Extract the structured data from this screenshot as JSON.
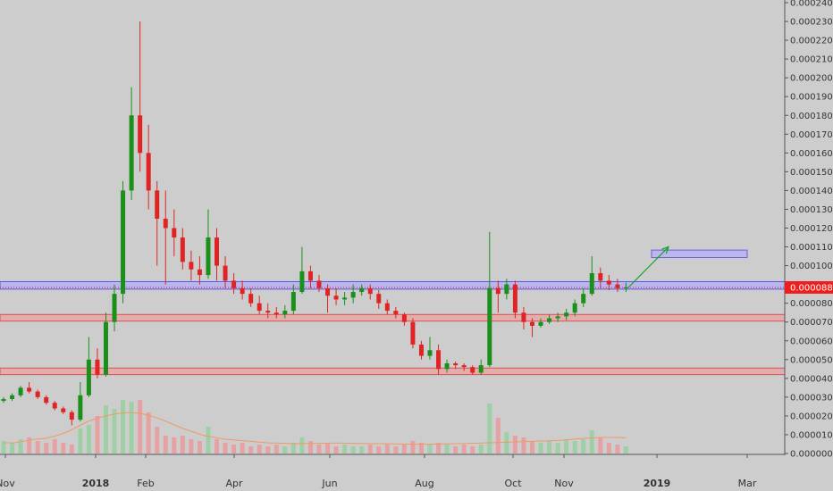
{
  "chart_data": {
    "type": "candlestick",
    "title": "",
    "xlabel": "",
    "ylabel": "",
    "ylim": [
      0,
      0.00024
    ],
    "grid": false,
    "legend": "none",
    "colors": {
      "up": "#1a8f1a",
      "down": "#e02424",
      "background": "#cdcdcd",
      "price_tag": "#f01d1d",
      "volume_up": "#9fcfa5",
      "volume_down": "#e6a2a2",
      "volume_ma": "#ef9a66",
      "support_zone": "#ee9999",
      "resistance_zone": "#aaa7ff",
      "target_box": "#b7b2f0",
      "arrow": "#12a52a"
    },
    "y_ticks": [
      "0.000240000",
      "0.000230000",
      "0.000220000",
      "0.000210000",
      "0.000200000",
      "0.000190000",
      "0.000180000",
      "0.000170000",
      "0.000160000",
      "0.000150000",
      "0.000140000",
      "0.000130000",
      "0.000120000",
      "0.000110000",
      "0.000100000",
      "0.000090000",
      "0.000080000",
      "0.000070000",
      "0.000060000",
      "0.000050000",
      "0.000040000",
      "0.000030000",
      "0.000020000",
      "0.000010000",
      "0.000000000"
    ],
    "x_ticks": [
      {
        "label": "Nov",
        "bold": false
      },
      {
        "label": "2018",
        "bold": true
      },
      {
        "label": "Feb",
        "bold": false
      },
      {
        "label": "Apr",
        "bold": false
      },
      {
        "label": "Jun",
        "bold": false
      },
      {
        "label": "Aug",
        "bold": false
      },
      {
        "label": "Oct",
        "bold": false
      },
      {
        "label": "Nov",
        "bold": false
      },
      {
        "label": "2019",
        "bold": true
      },
      {
        "label": "Mar",
        "bold": false
      }
    ],
    "last_price": "0.000088400",
    "zones": [
      {
        "kind": "resistance",
        "low": 8.75e-05,
        "high": 9.15e-05
      },
      {
        "kind": "support",
        "low": 7.05e-05,
        "high": 7.4e-05
      },
      {
        "kind": "support",
        "low": 4.2e-05,
        "high": 4.55e-05
      }
    ],
    "target_box": {
      "low": 0.0001043,
      "high": 0.0001083
    },
    "series": [
      {
        "name": "",
        "points": [
          [
            2.8e-05,
            2.9e-05,
            3e-05,
            2.7e-05
          ],
          [
            2.9e-05,
            3.1e-05,
            3.2e-05,
            2.8e-05
          ],
          [
            3.1e-05,
            3.5e-05,
            3.6e-05,
            3e-05
          ],
          [
            3.5e-05,
            3.3e-05,
            3.8e-05,
            3.2e-05
          ],
          [
            3.3e-05,
            3e-05,
            3.4e-05,
            2.9e-05
          ],
          [
            3e-05,
            2.7e-05,
            3.1e-05,
            2.6e-05
          ],
          [
            2.7e-05,
            2.4e-05,
            2.8e-05,
            2.3e-05
          ],
          [
            2.4e-05,
            2.2e-05,
            2.5e-05,
            2.1e-05
          ],
          [
            2.2e-05,
            1.8e-05,
            2.3e-05,
            1.5e-05
          ],
          [
            1.8e-05,
            3.1e-05,
            3.8e-05,
            1.7e-05
          ],
          [
            3.1e-05,
            5e-05,
            6.2e-05,
            3e-05
          ],
          [
            5e-05,
            4.2e-05,
            5.6e-05,
            4e-05
          ],
          [
            4.2e-05,
            7e-05,
            7.5e-05,
            4.1e-05
          ],
          [
            7e-05,
            8.5e-05,
            9e-05,
            6.5e-05
          ],
          [
            8.5e-05,
            0.00014,
            0.000145,
            8e-05
          ],
          [
            0.00014,
            0.00018,
            0.000195,
            0.000135
          ],
          [
            0.00018,
            0.00016,
            0.00023,
            0.00015
          ],
          [
            0.00016,
            0.00014,
            0.000175,
            0.00013
          ],
          [
            0.00014,
            0.000125,
            0.000145,
            0.0001
          ],
          [
            0.000125,
            0.00012,
            0.00014,
            9e-05
          ],
          [
            0.00012,
            0.000115,
            0.00013,
            0.000105
          ],
          [
            0.000115,
            0.000102,
            0.00012,
            9.8e-05
          ],
          [
            0.000102,
            9.8e-05,
            0.000108,
            9.2e-05
          ],
          [
            9.8e-05,
            9.5e-05,
            0.000105,
            9e-05
          ],
          [
            9.5e-05,
            0.000115,
            0.00013,
            9.3e-05
          ],
          [
            0.000115,
            0.0001,
            0.00012,
            9.2e-05
          ],
          [
            0.0001,
            9.2e-05,
            0.000105,
            8.8e-05
          ],
          [
            9.2e-05,
            8.8e-05,
            9.6e-05,
            8.5e-05
          ],
          [
            8.8e-05,
            8.5e-05,
            9.2e-05,
            8.2e-05
          ],
          [
            8.5e-05,
            8e-05,
            8.8e-05,
            7.8e-05
          ],
          [
            8e-05,
            7.6e-05,
            8.4e-05,
            7.4e-05
          ],
          [
            7.6e-05,
            7.5e-05,
            8e-05,
            7.2e-05
          ],
          [
            7.5e-05,
            7.4e-05,
            7.8e-05,
            7.2e-05
          ],
          [
            7.4e-05,
            7.6e-05,
            7.9e-05,
            7.2e-05
          ],
          [
            7.6e-05,
            8.6e-05,
            9e-05,
            7.4e-05
          ],
          [
            8.6e-05,
            9.7e-05,
            0.00011,
            8.5e-05
          ],
          [
            9.7e-05,
            9.2e-05,
            0.0001,
            8.8e-05
          ],
          [
            9.2e-05,
            8.8e-05,
            9.5e-05,
            8.6e-05
          ],
          [
            8.8e-05,
            8.4e-05,
            9e-05,
            7.5e-05
          ],
          [
            8.4e-05,
            8.2e-05,
            8.8e-05,
            7.9e-05
          ],
          [
            8.2e-05,
            8.3e-05,
            8.6e-05,
            7.9e-05
          ],
          [
            8.3e-05,
            8.6e-05,
            9e-05,
            8e-05
          ],
          [
            8.6e-05,
            8.8e-05,
            9e-05,
            8.4e-05
          ],
          [
            8.8e-05,
            8.5e-05,
            9e-05,
            8.2e-05
          ],
          [
            8.5e-05,
            8e-05,
            8.7e-05,
            7.7e-05
          ],
          [
            8e-05,
            7.6e-05,
            8.2e-05,
            7.4e-05
          ],
          [
            7.6e-05,
            7.4e-05,
            7.8e-05,
            7.2e-05
          ],
          [
            7.4e-05,
            7e-05,
            7.5e-05,
            6.8e-05
          ],
          [
            7e-05,
            5.8e-05,
            7.2e-05,
            5.6e-05
          ],
          [
            5.8e-05,
            5.2e-05,
            6e-05,
            5e-05
          ],
          [
            5.2e-05,
            5.5e-05,
            6.2e-05,
            5e-05
          ],
          [
            5.5e-05,
            4.5e-05,
            5.8e-05,
            4.2e-05
          ],
          [
            4.5e-05,
            4.8e-05,
            5e-05,
            4.3e-05
          ],
          [
            4.8e-05,
            4.7e-05,
            4.9e-05,
            4.5e-05
          ],
          [
            4.7e-05,
            4.6e-05,
            4.8e-05,
            4.4e-05
          ],
          [
            4.6e-05,
            4.3e-05,
            4.7e-05,
            4.2e-05
          ],
          [
            4.3e-05,
            4.7e-05,
            5e-05,
            4.2e-05
          ],
          [
            4.7e-05,
            8.8e-05,
            0.000118,
            4.6e-05
          ],
          [
            8.8e-05,
            8.5e-05,
            9.2e-05,
            7.5e-05
          ],
          [
            8.5e-05,
            9e-05,
            9.3e-05,
            8.2e-05
          ],
          [
            9e-05,
            7.5e-05,
            9.2e-05,
            7.2e-05
          ],
          [
            7.5e-05,
            7e-05,
            7.8e-05,
            6.6e-05
          ],
          [
            7e-05,
            6.8e-05,
            7.2e-05,
            6.2e-05
          ],
          [
            6.8e-05,
            7e-05,
            7.2e-05,
            6.7e-05
          ],
          [
            7e-05,
            7.2e-05,
            7.4e-05,
            6.9e-05
          ],
          [
            7.2e-05,
            7.3e-05,
            7.5e-05,
            7e-05
          ],
          [
            7.3e-05,
            7.5e-05,
            7.7e-05,
            7.1e-05
          ],
          [
            7.5e-05,
            8e-05,
            8.2e-05,
            7.3e-05
          ],
          [
            8e-05,
            8.5e-05,
            8.8e-05,
            7.8e-05
          ],
          [
            8.5e-05,
            9.6e-05,
            0.000105,
            8.4e-05
          ],
          [
            9.6e-05,
            9.2e-05,
            9.9e-05,
            8.8e-05
          ],
          [
            9.2e-05,
            9e-05,
            9.5e-05,
            8.7e-05
          ],
          [
            9e-05,
            8.8e-05,
            9.3e-05,
            8.6e-05
          ],
          [
            8.8e-05,
            8.84e-05,
            9.1e-05,
            8.6e-05
          ]
        ]
      },
      {
        "name": "",
        "points": [
          7e-06,
          6e-06,
          8e-06,
          9e-06,
          7e-06,
          6e-06,
          8e-06,
          6e-06,
          5e-06,
          1.4e-05,
          1.6e-05,
          2.1e-05,
          2.7e-05,
          2.5e-05,
          3e-05,
          2.9e-05,
          3e-05,
          2.3e-05,
          1.5e-05,
          1e-05,
          9e-06,
          1e-05,
          8e-06,
          7e-06,
          1.5e-05,
          8e-06,
          6e-06,
          5e-06,
          6e-06,
          4e-06,
          5e-06,
          4e-06,
          5e-06,
          4e-06,
          6e-06,
          9e-06,
          7e-06,
          5e-06,
          6e-06,
          4e-06,
          5e-06,
          4e-06,
          4e-06,
          5e-06,
          4e-06,
          5e-06,
          4e-06,
          5e-06,
          7e-06,
          6e-06,
          5e-06,
          6e-06,
          5e-06,
          4e-06,
          5e-06,
          4e-06,
          5e-06,
          2.8e-05,
          2e-05,
          1.2e-05,
          1e-05,
          9e-06,
          7e-06,
          6e-06,
          7e-06,
          6e-06,
          8e-06,
          7e-06,
          8e-06,
          1.3e-05,
          9e-06,
          6e-06,
          5e-06,
          4e-06
        ]
      },
      {
        "name": "",
        "points": [
          6e-06,
          6e-06,
          7e-06,
          8e-06,
          8.5e-06,
          1e-05,
          1.2e-05,
          1.5e-05,
          1.8e-05,
          2e-05,
          2.15e-05,
          2.25e-05,
          2.3e-05,
          2.25e-05,
          2.1e-05,
          1.9e-05,
          1.65e-05,
          1.4e-05,
          1.2e-05,
          1e-05,
          9e-06,
          8e-06,
          7.5e-06,
          7e-06,
          6.5e-06,
          6e-06,
          5.8e-06,
          5.6e-06,
          5.5e-06,
          5.6e-06,
          5.7e-06,
          5.8e-06,
          5.8e-06,
          5.7e-06,
          5.6e-06,
          5.5e-06,
          5.5e-06,
          5.4e-06,
          5.3e-06,
          5.2e-06,
          5.2e-06,
          5.3e-06,
          5.4e-06,
          5.5e-06,
          5.6e-06,
          5.8e-06,
          6e-06,
          6.2e-06,
          6.4e-06,
          6.6e-06,
          6.8e-06,
          7e-06,
          7.2e-06,
          7.5e-06,
          8e-06,
          8.5e-06,
          8.8e-06,
          9e-06,
          9e-06,
          8.8e-06
        ]
      }
    ]
  }
}
